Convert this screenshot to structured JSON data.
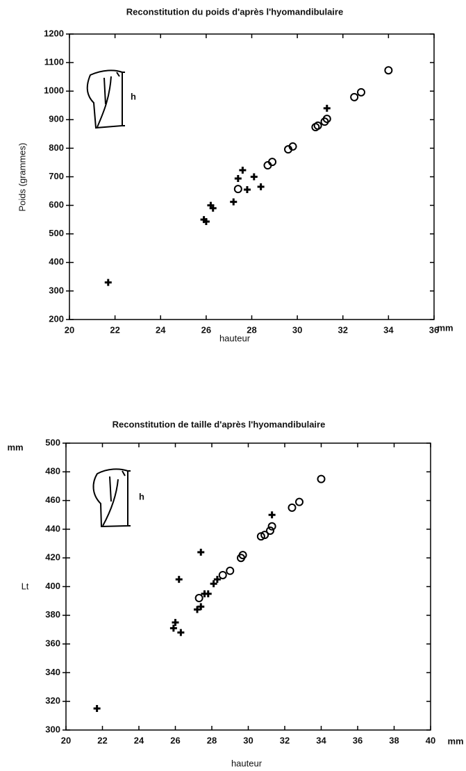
{
  "chart_data": [
    {
      "type": "scatter",
      "title": "Reconstitution du poids d'après l'hyomandibulaire",
      "x_label": "hauteur",
      "x_unit": "mm",
      "y_label": "Poids (grammes)",
      "icon_label": "h",
      "xlim": [
        20,
        36
      ],
      "xticks": [
        20,
        22,
        24,
        26,
        28,
        30,
        32,
        34,
        36
      ],
      "ylim": [
        200,
        1200
      ],
      "yticks": [
        200,
        300,
        400,
        500,
        600,
        700,
        800,
        900,
        1000,
        1100,
        1200
      ],
      "series": [
        {
          "marker": "plus",
          "color": "#000000",
          "x": [
            21.7,
            25.9,
            26.0,
            26.2,
            26.3,
            27.2,
            27.4,
            27.6,
            27.8,
            28.1,
            28.4,
            31.3
          ],
          "values": [
            330,
            550,
            543,
            600,
            590,
            612,
            694,
            723,
            655,
            700,
            665,
            940
          ]
        },
        {
          "marker": "circle",
          "color": "#000000",
          "x": [
            27.4,
            28.7,
            28.9,
            29.6,
            29.8,
            30.8,
            30.9,
            31.2,
            31.3,
            32.5,
            32.8,
            34.0
          ],
          "values": [
            657,
            740,
            752,
            796,
            806,
            874,
            879,
            893,
            903,
            979,
            996,
            1073
          ]
        }
      ]
    },
    {
      "type": "scatter",
      "title": "Reconstitution de taille d'après l'hyomandibulaire",
      "x_label": "hauteur",
      "x_unit": "mm",
      "y_label": "Lt",
      "y_unit": "mm",
      "icon_label": "h",
      "xlim": [
        20,
        40
      ],
      "xticks": [
        20,
        22,
        24,
        26,
        28,
        30,
        32,
        34,
        36,
        38,
        40
      ],
      "ylim": [
        300,
        500
      ],
      "yticks": [
        300,
        320,
        340,
        360,
        380,
        400,
        420,
        440,
        460,
        480,
        500
      ],
      "series": [
        {
          "marker": "plus",
          "color": "#000000",
          "x": [
            21.7,
            25.9,
            26.0,
            26.2,
            26.3,
            27.4,
            27.2,
            27.4,
            27.6,
            27.8,
            28.1,
            28.3,
            31.3
          ],
          "values": [
            315,
            371,
            375,
            405,
            368,
            424,
            384,
            386,
            395,
            395,
            402,
            405,
            450
          ]
        },
        {
          "marker": "circle",
          "color": "#000000",
          "x": [
            27.3,
            28.6,
            29.0,
            29.6,
            29.7,
            30.7,
            30.9,
            31.2,
            31.3,
            32.4,
            32.8,
            34.0
          ],
          "values": [
            392,
            408,
            411,
            420,
            422,
            435,
            436,
            439,
            442,
            455,
            459,
            475
          ]
        }
      ]
    }
  ]
}
